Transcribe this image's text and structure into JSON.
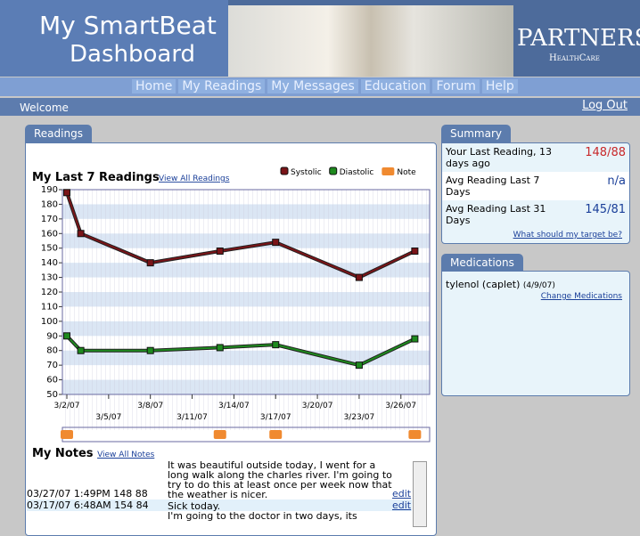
{
  "header": {
    "logo_line1": "My SmartBeat",
    "logo_line2": "Dashboard",
    "partner_name": "PARTNERS",
    "partner_sub": "HealthCare"
  },
  "nav": [
    "Home",
    "My Readings",
    "My Messages",
    "Education",
    "Forum",
    "Help"
  ],
  "welcome": "Welcome",
  "logout": "Log Out",
  "readings_tab": "Readings",
  "chart_data": {
    "type": "line",
    "title": "My Last 7 Readings",
    "title_link": "View All Readings",
    "x": [
      "2007-03-02",
      "2007-03-03",
      "2007-03-08",
      "2007-03-13",
      "2007-03-17",
      "2007-03-23",
      "2007-03-27"
    ],
    "series": [
      {
        "name": "Systolic",
        "color": "#7a1418",
        "values": [
          188,
          160,
          140,
          148,
          154,
          130,
          148
        ]
      },
      {
        "name": "Diastolic",
        "color": "#1e8a1e",
        "values": [
          90,
          80,
          80,
          82,
          84,
          70,
          88
        ]
      }
    ],
    "notes_legend": "Note",
    "notes_color": "#f08a30",
    "note_x": [
      "2007-03-02",
      "2007-03-13",
      "2007-03-17",
      "2007-03-27"
    ],
    "xlim": [
      "2007-03-02",
      "2007-03-28"
    ],
    "xticks": [
      {
        "value": "2007-03-02",
        "label": "3/2/07"
      },
      {
        "value": "2007-03-05",
        "label": "3/5/07"
      },
      {
        "value": "2007-03-08",
        "label": "3/8/07"
      },
      {
        "value": "2007-03-11",
        "label": "3/11/07"
      },
      {
        "value": "2007-03-14",
        "label": "3/14/07"
      },
      {
        "value": "2007-03-17",
        "label": "3/17/07"
      },
      {
        "value": "2007-03-20",
        "label": "3/20/07"
      },
      {
        "value": "2007-03-23",
        "label": "3/23/07"
      },
      {
        "value": "2007-03-26",
        "label": "3/26/07"
      }
    ],
    "ylim": [
      50,
      190
    ],
    "yticks": [
      50,
      60,
      70,
      80,
      90,
      100,
      110,
      120,
      130,
      140,
      150,
      160,
      170,
      180,
      190
    ],
    "grid": true
  },
  "notes": {
    "title": "My Notes",
    "link": "View All Notes",
    "edit": "edit",
    "rows": [
      {
        "when": "03/27/07 1:49PM 148 88",
        "text": "It was beautiful outside today, I went for a long walk along the charles river. I'm going to try to do this at least once per week now that the weather is nicer."
      },
      {
        "when": "03/17/07 6:48AM 154 84",
        "text": "Sick today."
      },
      {
        "when": "",
        "text": "I'm going to the doctor in two days, its"
      }
    ]
  },
  "summary": {
    "tab": "Summary",
    "rows": [
      {
        "label": "Your Last Reading, 13 days ago",
        "value": "148/88"
      },
      {
        "label": "Avg Reading Last 7 Days",
        "value": "n/a"
      },
      {
        "label": "Avg Reading Last 31 Days",
        "value": "145/81"
      }
    ],
    "link": "What should my target be?"
  },
  "medications": {
    "tab": "Medications",
    "name": "tylenol (caplet)",
    "date": "(4/9/07)",
    "link": "Change Medications"
  }
}
